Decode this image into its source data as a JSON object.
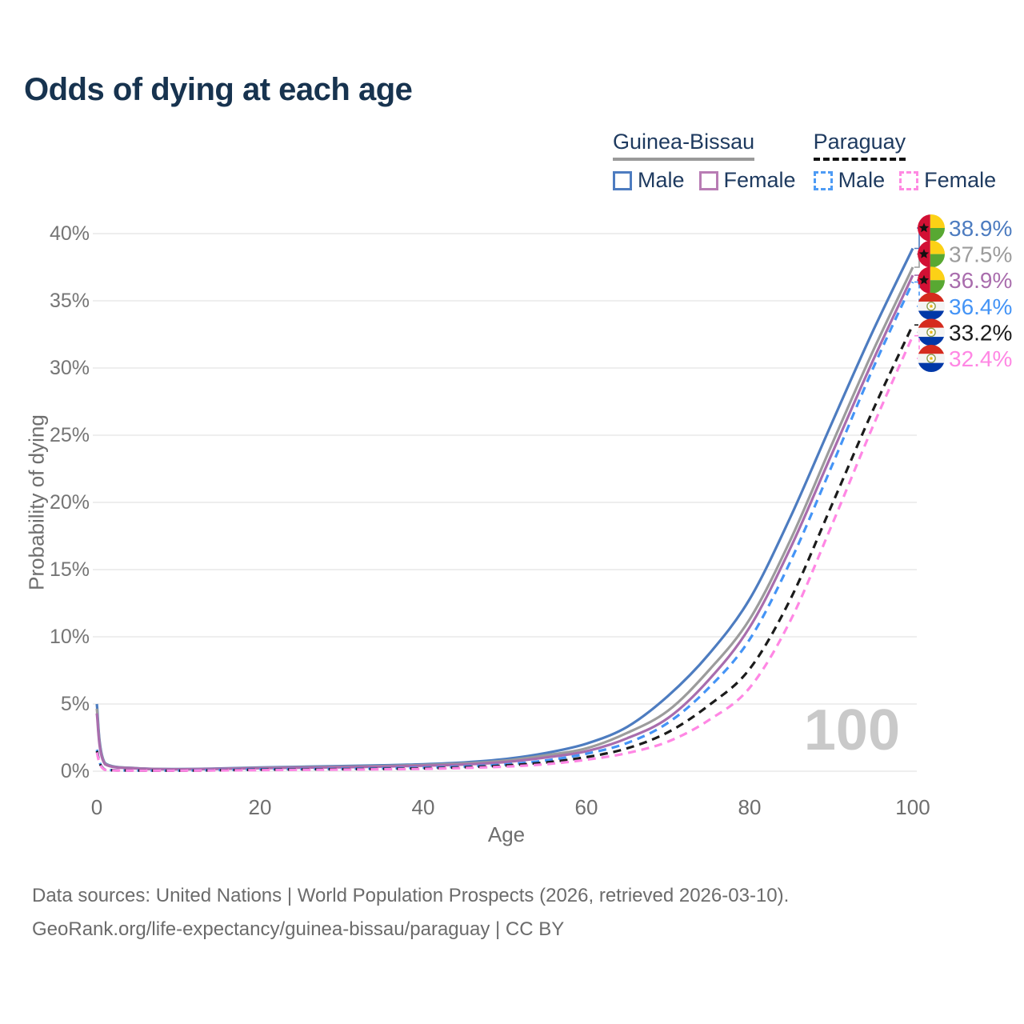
{
  "title": "Odds of dying at each age",
  "watermark": "100",
  "legend": {
    "groups": [
      {
        "name": "Guinea-Bissau",
        "underline_style": "solid",
        "underline_color": "#9a9a9a",
        "items": [
          {
            "label": "Male",
            "color": "#4d7cc0",
            "box_style": "solid"
          },
          {
            "label": "Female",
            "color": "#b87cb4",
            "box_style": "solid"
          }
        ]
      },
      {
        "name": "Paraguay",
        "underline_style": "dashed",
        "underline_color": "#111111",
        "items": [
          {
            "label": "Male",
            "color": "#4d9bf5",
            "box_style": "dashed"
          },
          {
            "label": "Female",
            "color": "#ff8ae2",
            "box_style": "dashed"
          }
        ]
      }
    ]
  },
  "footer": {
    "line1": "Data sources: United Nations | World Population Prospects (2026, retrieved 2026-03-10).",
    "line2": "GeoRank.org/life-expectancy/guinea-bissau/paraguay | CC BY"
  },
  "chart_data": {
    "type": "line",
    "title": "Odds of dying at each age",
    "xlabel": "Age",
    "ylabel": "Probability of dying",
    "xlim": [
      0,
      100
    ],
    "ylim": [
      0,
      40
    ],
    "x_ticks": [
      0,
      20,
      40,
      60,
      80,
      100
    ],
    "y_ticks": [
      0,
      5,
      10,
      15,
      20,
      25,
      30,
      35,
      40
    ],
    "y_tick_suffix": "%",
    "grid": "horizontal",
    "x": [
      0,
      1,
      5,
      10,
      15,
      20,
      25,
      30,
      35,
      40,
      45,
      50,
      55,
      60,
      65,
      70,
      75,
      80,
      85,
      90,
      95,
      100
    ],
    "series": [
      {
        "country": "Guinea-Bissau",
        "sex": "male",
        "name": "Guinea-Bissau Male",
        "color": "#4d7cc0",
        "dashed": false,
        "flag": "guinea-bissau",
        "end_label": "38.9%",
        "values": [
          5.0,
          0.6,
          0.22,
          0.16,
          0.2,
          0.28,
          0.33,
          0.38,
          0.44,
          0.52,
          0.65,
          0.9,
          1.35,
          2.05,
          3.3,
          5.6,
          8.7,
          12.8,
          18.9,
          25.8,
          32.6,
          38.9
        ]
      },
      {
        "country": "Guinea-Bissau",
        "sex": "all",
        "name": "Guinea-Bissau",
        "color": "#9c9c9c",
        "dashed": false,
        "flag": "guinea-bissau",
        "end_label": "37.5%",
        "values": [
          4.65,
          0.56,
          0.21,
          0.15,
          0.18,
          0.25,
          0.29,
          0.33,
          0.38,
          0.46,
          0.57,
          0.78,
          1.18,
          1.7,
          2.85,
          4.5,
          7.5,
          11.3,
          17.2,
          24.2,
          31.1,
          37.5
        ]
      },
      {
        "country": "Guinea-Bissau",
        "sex": "female",
        "name": "Guinea-Bissau Female",
        "color": "#a96dad",
        "dashed": false,
        "flag": "guinea-bissau",
        "end_label": "36.9%",
        "values": [
          4.3,
          0.52,
          0.2,
          0.14,
          0.17,
          0.22,
          0.26,
          0.29,
          0.34,
          0.41,
          0.5,
          0.68,
          1.02,
          1.48,
          2.45,
          3.95,
          6.8,
          10.7,
          16.6,
          23.5,
          30.4,
          36.9
        ]
      },
      {
        "country": "Paraguay",
        "sex": "male",
        "name": "Paraguay Male",
        "color": "#4494f6",
        "dashed": true,
        "flag": "paraguay",
        "end_label": "36.4%",
        "values": [
          1.6,
          0.12,
          0.05,
          0.05,
          0.09,
          0.14,
          0.16,
          0.18,
          0.21,
          0.26,
          0.35,
          0.5,
          0.8,
          1.3,
          2.1,
          3.6,
          6.2,
          9.8,
          15.6,
          22.6,
          29.8,
          36.4
        ]
      },
      {
        "country": "Paraguay",
        "sex": "all",
        "name": "Paraguay",
        "color": "#1b1b1b",
        "dashed": true,
        "flag": "paraguay",
        "end_label": "33.2%",
        "values": [
          1.5,
          0.11,
          0.05,
          0.04,
          0.07,
          0.11,
          0.13,
          0.15,
          0.17,
          0.21,
          0.29,
          0.42,
          0.65,
          1.05,
          1.7,
          2.9,
          4.9,
          7.6,
          12.8,
          19.7,
          26.7,
          33.2
        ]
      },
      {
        "country": "Paraguay",
        "sex": "female",
        "name": "Paraguay Female",
        "color": "#ff87e4",
        "dashed": true,
        "flag": "paraguay",
        "end_label": "32.4%",
        "values": [
          1.4,
          0.1,
          0.04,
          0.04,
          0.06,
          0.08,
          0.1,
          0.12,
          0.14,
          0.17,
          0.24,
          0.34,
          0.52,
          0.85,
          1.35,
          2.2,
          3.8,
          6.2,
          11.2,
          18.2,
          25.5,
          32.4
        ]
      }
    ]
  }
}
